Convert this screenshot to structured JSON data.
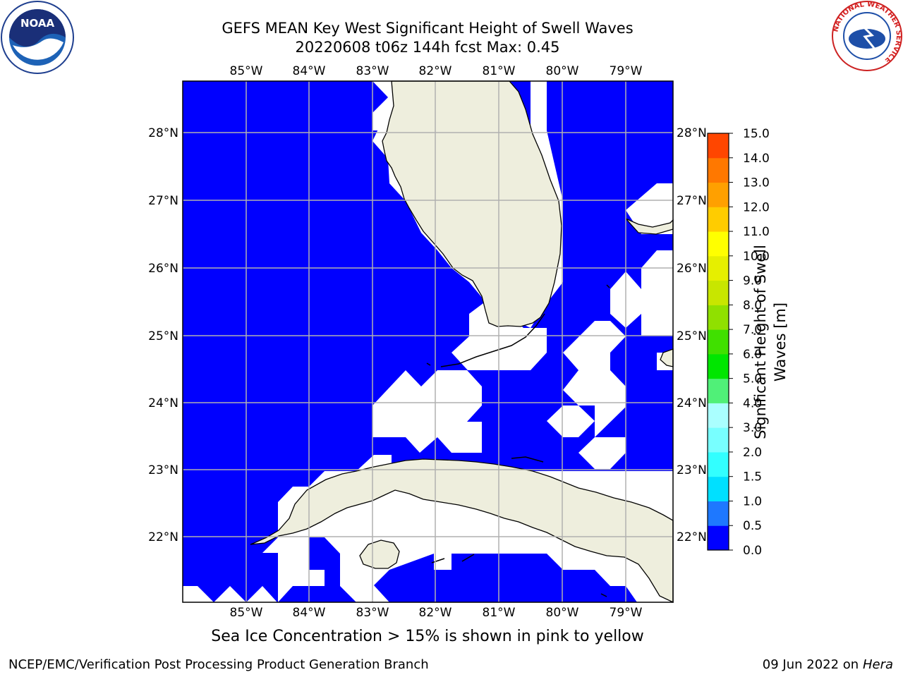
{
  "title": {
    "line1": "GEFS MEAN Key West Significant Height of Swell Waves",
    "line2": "20220608 t06z 144h fcst   Max: 0.45"
  },
  "logos": {
    "left": "NOAA",
    "right_ring": "NATIONAL WEATHER SERVICE"
  },
  "map": {
    "lon_labels": [
      "85°W",
      "84°W",
      "83°W",
      "82°W",
      "81°W",
      "80°W",
      "79°W"
    ],
    "lat_labels": [
      "28°N",
      "27°N",
      "26°N",
      "25°N",
      "24°N",
      "23°N",
      "22°N"
    ],
    "ocean_color": "#0000ff",
    "land_color": "#eeeedd",
    "missing_color": "#ffffff",
    "grid_color": "#b0b0b0"
  },
  "colorbar": {
    "label": "Significant Height of Swell Waves [m]",
    "ticks": [
      "0.0",
      "0.5",
      "1.0",
      "1.5",
      "2.0",
      "3.0",
      "4.0",
      "5.0",
      "6.0",
      "7.0",
      "8.0",
      "9.0",
      "10.0",
      "11.0",
      "12.0",
      "13.0",
      "14.0",
      "15.0"
    ],
    "colors": [
      "#0000ff",
      "#1e78ff",
      "#00e0ff",
      "#32ffff",
      "#78ffff",
      "#aaffff",
      "#50f078",
      "#00e600",
      "#40e000",
      "#90e000",
      "#c8e600",
      "#e6ef00",
      "#ffff00",
      "#ffcc00",
      "#ffa000",
      "#ff7800",
      "#ff4600",
      "#ff0000"
    ]
  },
  "sea_ice_note": "Sea Ice Concentration > 15% is shown in pink to yellow",
  "footer": {
    "left": "NCEP/EMC/Verification Post Processing Product Generation Branch",
    "date": "09 Jun 2022 on",
    "host": "Hera"
  }
}
